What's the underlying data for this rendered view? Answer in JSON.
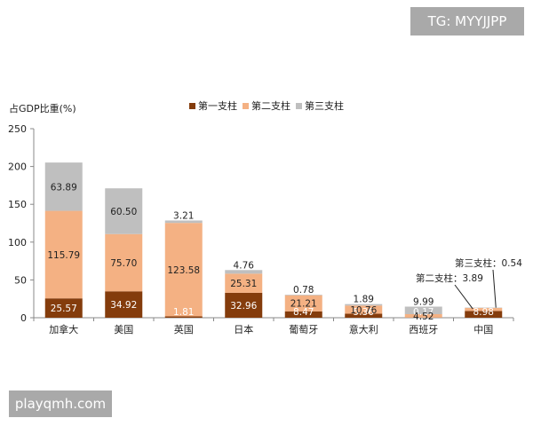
{
  "watermarks": {
    "top": "TG: MYYJJPP",
    "bottom": "playqmh.com"
  },
  "chart_data": {
    "type": "bar",
    "stacked": true,
    "ylabel": "占GDP比重(%)",
    "ylim": [
      0,
      250
    ],
    "yticks": [
      "0",
      "50",
      "100",
      "150",
      "200",
      "250"
    ],
    "grid": false,
    "legend_position": "top-right",
    "categories": [
      "加拿大",
      "美国",
      "英国",
      "日本",
      "葡萄牙",
      "意大利",
      "西班牙",
      "中国"
    ],
    "series": [
      {
        "name": "第一支柱",
        "color": "#843c0c",
        "values": [
          25.57,
          34.92,
          1.81,
          32.96,
          8.47,
          5.36,
          0.17,
          8.98
        ],
        "labels": [
          "25.57",
          "34.92",
          "1.81",
          "32.96",
          "8.47",
          "5.36",
          "0.17",
          "8.98"
        ]
      },
      {
        "name": "第二支柱",
        "color": "#f4b183",
        "values": [
          115.79,
          75.7,
          123.58,
          25.31,
          21.21,
          10.76,
          4.52,
          3.89
        ],
        "labels": [
          "115.79",
          "75.70",
          "123.58",
          "25.31",
          "21.21",
          "10.76",
          "4.52",
          ""
        ]
      },
      {
        "name": "第三支柱",
        "color": "#bfbfbf",
        "values": [
          63.89,
          60.5,
          3.21,
          4.76,
          0.78,
          1.89,
          9.99,
          0.54
        ],
        "labels": [
          "63.89",
          "60.50",
          "3.21",
          "4.76",
          "0.78",
          "1.89",
          "9.99",
          ""
        ]
      }
    ],
    "annotations": [
      {
        "text": "第三支柱：0.54"
      },
      {
        "text": "第二支柱：3.89"
      }
    ]
  }
}
